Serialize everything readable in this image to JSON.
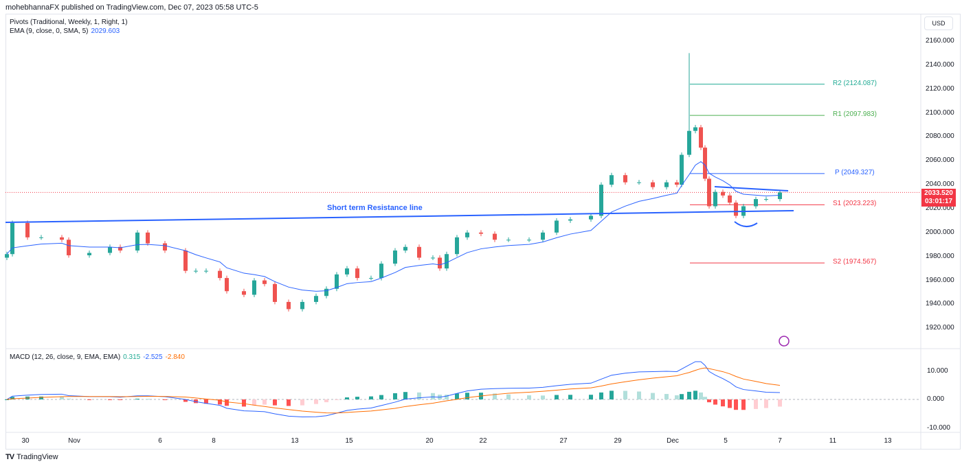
{
  "header": {
    "published": "mohebhannaFX published on TradingView.com, Dec 07, 2023 05:58 UTC-5"
  },
  "legend": {
    "pivots": "Pivots (Traditional, Weekly, 1, Right, 1)",
    "ema": "EMA (9, close, 0, SMA, 5)",
    "ema_value": "2029.603",
    "macd": "MACD (12, 26, close, 9, EMA, EMA)",
    "macd_hist": "0.315",
    "macd_line": "-2.525",
    "macd_signal": "-2.840"
  },
  "price_axis": {
    "currency": "USD",
    "labels": [
      "2160.000",
      "2140.000",
      "2120.000",
      "2100.000",
      "2080.000",
      "2060.000",
      "2040.000",
      "2020.000",
      "2000.000",
      "1980.000",
      "1960.000",
      "1940.000",
      "1920.000"
    ],
    "current_price": "2033.520",
    "countdown": "03:01:17"
  },
  "macd_axis": {
    "labels": [
      "10.000",
      "0.000",
      "-10.000"
    ]
  },
  "time_axis": {
    "labels": [
      "30",
      "Nov",
      "6",
      "8",
      "13",
      "15",
      "20",
      "22",
      "27",
      "29",
      "Dec",
      "5",
      "7",
      "11",
      "13"
    ]
  },
  "annotations": {
    "resistance_label": "Short term Resistance line"
  },
  "pivots": [
    {
      "name": "R2",
      "value": 2124.087,
      "label": "R2 (2124.087)",
      "color": "#22ab94"
    },
    {
      "name": "R1",
      "value": 2097.983,
      "label": "R1 (2097.983)",
      "color": "#4caf50"
    },
    {
      "name": "P",
      "value": 2049.327,
      "label": "P (2049.327)",
      "color": "#2962ff"
    },
    {
      "name": "S1",
      "value": 2023.223,
      "label": "S1 (2023.223)",
      "color": "#f23645"
    },
    {
      "name": "S2",
      "value": 1974.567,
      "label": "S2 (1974.567)",
      "color": "#f23645"
    }
  ],
  "footer": {
    "brand": "TradingView"
  },
  "colors": {
    "up": "#26a69a",
    "down": "#ef5350",
    "ema": "#2962ff",
    "macd": "#2962ff",
    "signal": "#ff6d00",
    "accent": "#2962ff"
  },
  "chart_data": {
    "type": "candlestick",
    "symbol_currency": "USD",
    "ylim": [
      1910,
      2170
    ],
    "macd_ylim": [
      -12,
      16
    ],
    "closes": [
      1982,
      2008,
      1996,
      1996,
      1994,
      1981,
      1983,
      1988,
      1985,
      2000,
      1991,
      1985,
      1968,
      1968,
      1968,
      1962,
      1951,
      1948,
      1960,
      1957,
      1942,
      1936,
      1942,
      1947,
      1953,
      1965,
      1970,
      1962,
      1962,
      1974,
      1985,
      1988,
      1979,
      1979,
      1970,
      1982,
      1996,
      2000,
      1999,
      1994,
      1994,
      1994,
      2000,
      2010,
      2011,
      2014,
      2040,
      2048,
      2042,
      2042,
      2038,
      2042,
      2040,
      2065,
      2085,
      2088,
      2071,
      2045,
      2022,
      2034,
      2031,
      2025,
      2014,
      2022,
      2028,
      2028,
      2033.52
    ],
    "spike_high": {
      "index": 54,
      "value": 2150
    },
    "ema_period": 9,
    "macd_params": [
      12,
      26,
      9
    ]
  }
}
